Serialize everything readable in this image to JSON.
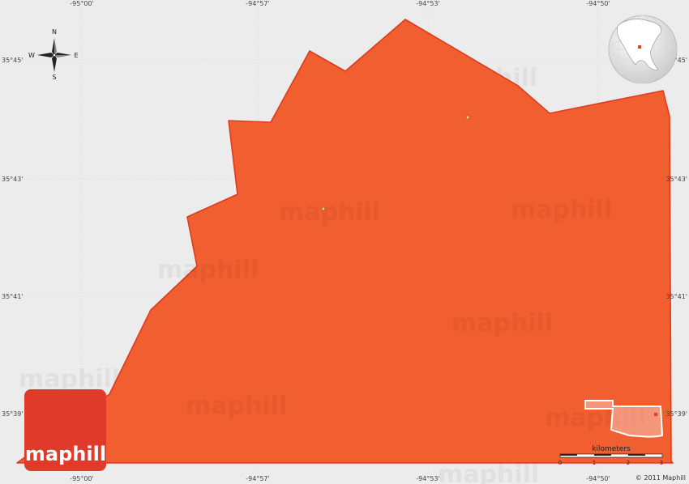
{
  "map": {
    "colors": {
      "background": "#ececec",
      "region_fill": "#f15e30",
      "region_border": "#e03a1e",
      "grid": "#cfcfcf",
      "logo": "#e03b2a"
    },
    "lon_labels": [
      "-95°00'",
      "-94°57'",
      "-94°53'",
      "-94°50'"
    ],
    "lat_labels": [
      "35°45'",
      "35°43'",
      "35°41'",
      "35°39'"
    ],
    "watermark": "maphill",
    "compass": {
      "n": "N",
      "s": "S",
      "e": "E",
      "w": "W"
    },
    "scale": {
      "title": "kilometers",
      "ticks": [
        "0",
        "1",
        "2",
        "3"
      ]
    },
    "copyright": "© 2011 Maphill",
    "logo": {
      "text": "maphill"
    },
    "locator_globe_icon": "globe-icon",
    "state_outline_icon": "oklahoma-outline-icon"
  }
}
